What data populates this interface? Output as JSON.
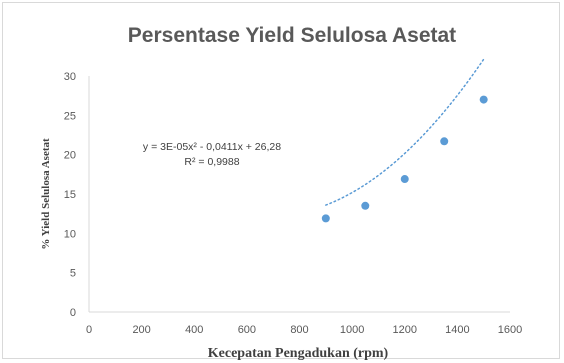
{
  "chart_data": {
    "type": "scatter",
    "title": "Persentase Yield Selulosa Asetat",
    "xlabel": "Kecepatan Pengadukan (rpm)",
    "ylabel": "% Yield Selulosa Asetat",
    "xlim": [
      0,
      1600
    ],
    "ylim": [
      0,
      30
    ],
    "x_ticks": [
      0,
      200,
      400,
      600,
      800,
      1000,
      1200,
      1400,
      1600
    ],
    "y_ticks": [
      0,
      5,
      10,
      15,
      20,
      25,
      30
    ],
    "grid": false,
    "series": [
      {
        "color": "#5b9bd5",
        "x": [
          900,
          1050,
          1200,
          1350,
          1500
        ],
        "y": [
          11.9,
          13.5,
          16.9,
          21.7,
          27.0
        ]
      }
    ],
    "trendline": {
      "type": "polynomial",
      "order": 2,
      "style": "dotted",
      "color": "#5b9bd5",
      "coefficients": {
        "a": 3e-05,
        "b": -0.0411,
        "c": 26.28
      },
      "equation_line1": "y = 3E-05x² - 0,0411x + 26,28",
      "equation_line2": "R² = 0,9988"
    }
  }
}
